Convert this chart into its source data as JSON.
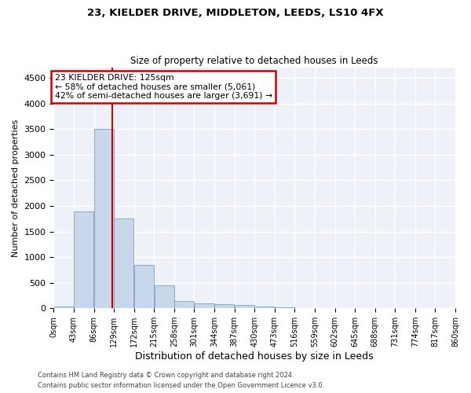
{
  "title1": "23, KIELDER DRIVE, MIDDLETON, LEEDS, LS10 4FX",
  "title2": "Size of property relative to detached houses in Leeds",
  "xlabel": "Distribution of detached houses by size in Leeds",
  "ylabel": "Number of detached properties",
  "annotation_title": "23 KIELDER DRIVE: 125sqm",
  "annotation_line2": "← 58% of detached houses are smaller (5,061)",
  "annotation_line3": "42% of semi-detached houses are larger (3,691) →",
  "property_size_sqm": 125,
  "bin_edges": [
    0,
    43,
    86,
    129,
    172,
    215,
    258,
    301,
    344,
    387,
    430,
    473,
    516,
    559,
    602,
    645,
    688,
    731,
    774,
    817,
    860
  ],
  "bin_labels": [
    "0sqm",
    "43sqm",
    "86sqm",
    "129sqm",
    "172sqm",
    "215sqm",
    "258sqm",
    "301sqm",
    "344sqm",
    "387sqm",
    "430sqm",
    "473sqm",
    "516sqm",
    "559sqm",
    "602sqm",
    "645sqm",
    "688sqm",
    "731sqm",
    "774sqm",
    "817sqm",
    "860sqm"
  ],
  "bar_heights": [
    30,
    1900,
    3500,
    1750,
    850,
    450,
    150,
    100,
    80,
    60,
    40,
    20,
    10,
    5,
    3,
    2,
    1,
    1,
    1,
    0
  ],
  "bar_color": "#c8d8ea",
  "bar_edge_color": "#7aa0bc",
  "vline_x": 125,
  "vline_color": "#cc0000",
  "ylim": [
    0,
    4700
  ],
  "yticks": [
    0,
    500,
    1000,
    1500,
    2000,
    2500,
    3000,
    3500,
    4000,
    4500
  ],
  "background_color": "#eef2f8",
  "grid_color": "#ffffff",
  "annotation_box_color": "#ffffff",
  "annotation_box_edge": "#cc0000",
  "footer_line1": "Contains HM Land Registry data © Crown copyright and database right 2024.",
  "footer_line2": "Contains public sector information licensed under the Open Government Licence v3.0."
}
